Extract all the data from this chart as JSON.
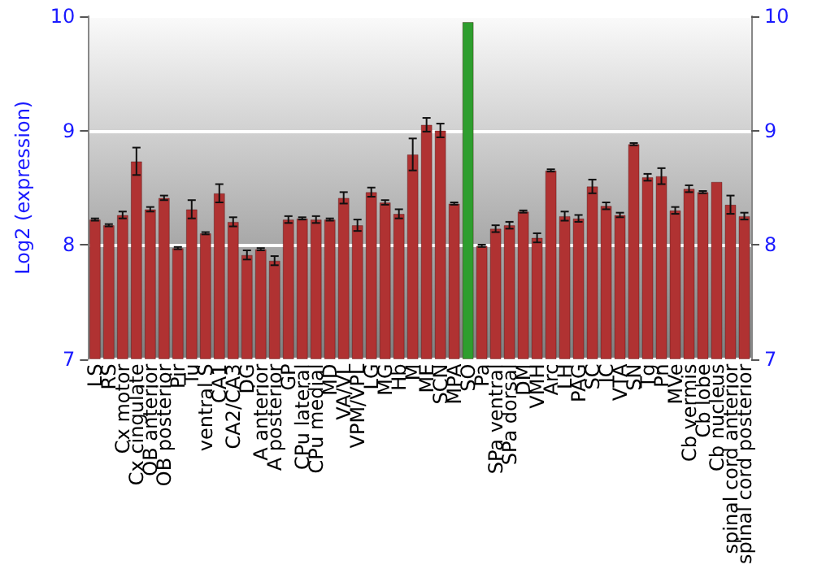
{
  "chart_data": {
    "type": "bar",
    "ylabel": "Log2 (expression)",
    "categories": [
      "LS",
      "RS",
      "Cx motor",
      "Cx cingulate",
      "OB anterior",
      "OB posterior",
      "Pir",
      "Tu",
      "ventral S",
      "CA1",
      "CA2/CA3",
      "DG",
      "A anterior",
      "A posterior",
      "GP",
      "CPu lateral",
      "CPu medial",
      "MD",
      "VA/VL",
      "VPM/VPL",
      "LG",
      "MG",
      "Hb",
      "M",
      "ME",
      "SCN",
      "MPA",
      "SO",
      "Pa",
      "SPa ventral",
      "SPa dorsal",
      "DM",
      "VMH",
      "Arc",
      "LH",
      "PAG",
      "SC",
      "IC",
      "VTA",
      "SN",
      "Tg",
      "Pn",
      "MVe",
      "Cb vermis",
      "Cb lobe",
      "Cb nucleus",
      "spinal cord anterior",
      "spinal cord posterior"
    ],
    "values": [
      8.22,
      8.17,
      8.26,
      8.73,
      8.31,
      8.41,
      7.97,
      8.31,
      8.1,
      8.45,
      8.2,
      7.91,
      7.96,
      7.86,
      8.22,
      8.23,
      8.22,
      8.22,
      8.41,
      8.17,
      8.46,
      8.37,
      8.27,
      8.79,
      9.05,
      9.0,
      8.36,
      9.95,
      7.99,
      8.14,
      8.17,
      8.29,
      8.06,
      8.65,
      8.25,
      8.23,
      8.51,
      8.34,
      8.26,
      8.88,
      8.59,
      8.6,
      8.3,
      8.49,
      8.46,
      8.55,
      8.35,
      8.25
    ],
    "errors": [
      0.01,
      0.01,
      0.03,
      0.12,
      0.02,
      0.02,
      0.01,
      0.08,
      0.01,
      0.08,
      0.04,
      0.04,
      0.01,
      0.04,
      0.03,
      0.01,
      0.03,
      0.01,
      0.05,
      0.05,
      0.04,
      0.02,
      0.04,
      0.14,
      0.06,
      0.06,
      0.01,
      null,
      0.01,
      0.03,
      0.03,
      0.01,
      0.04,
      0.01,
      0.04,
      0.03,
      0.06,
      0.03,
      0.02,
      0.01,
      0.03,
      0.07,
      0.03,
      0.03,
      0.01,
      null,
      0.08,
      0.03
    ],
    "colors": [
      "#b03232",
      "#b03232",
      "#b03232",
      "#b03232",
      "#b03232",
      "#b03232",
      "#b03232",
      "#b03232",
      "#b03232",
      "#b03232",
      "#b03232",
      "#b03232",
      "#b03232",
      "#b03232",
      "#b03232",
      "#b03232",
      "#b03232",
      "#b03232",
      "#b03232",
      "#b03232",
      "#b03232",
      "#b03232",
      "#b03232",
      "#b03232",
      "#b03232",
      "#b03232",
      "#b03232",
      "#2e9e2e",
      "#b03232",
      "#b03232",
      "#b03232",
      "#b03232",
      "#b03232",
      "#b03232",
      "#b03232",
      "#b03232",
      "#b03232",
      "#b03232",
      "#b03232",
      "#b03232",
      "#b03232",
      "#b03232",
      "#b03232",
      "#b03232",
      "#b03232",
      "#b03232",
      "#b03232",
      "#b03232"
    ],
    "ylim": [
      7,
      10
    ],
    "yticks": [
      7,
      8,
      9,
      10
    ],
    "y2lim": [
      7,
      10
    ],
    "y2ticks": [
      7,
      8,
      9,
      10
    ],
    "grid": "y"
  }
}
